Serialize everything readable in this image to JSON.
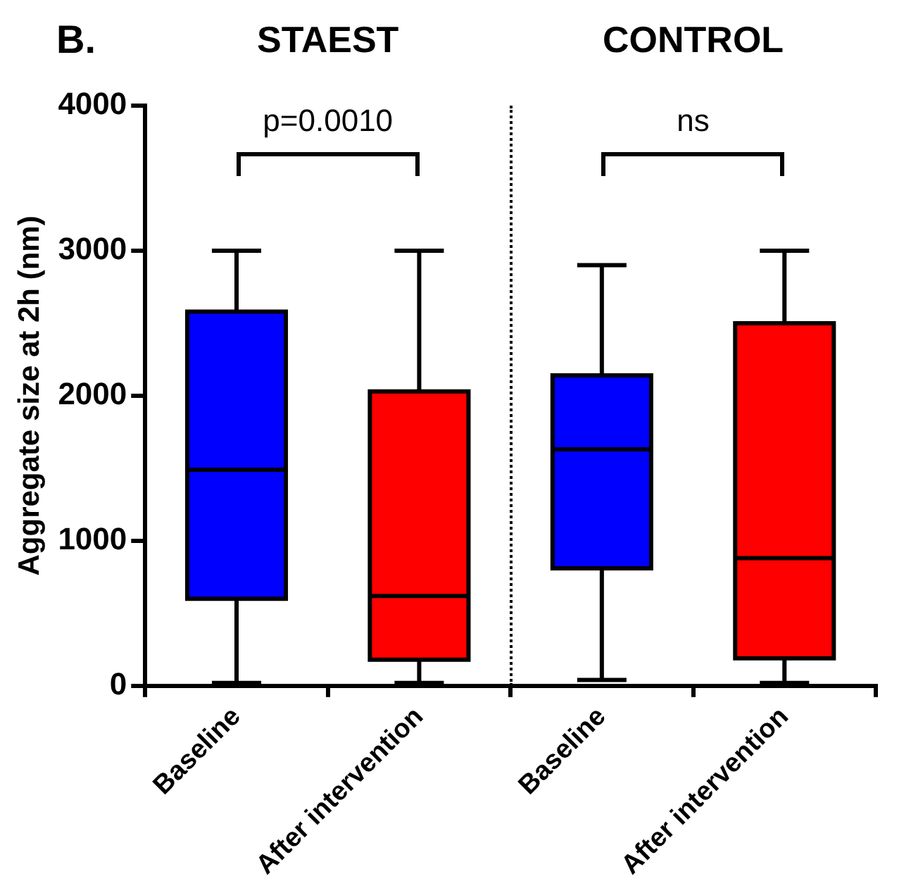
{
  "chart_data": {
    "type": "box",
    "title": "B.",
    "ylabel": "Aggregate size at 2h (nm)",
    "categories": [
      "Baseline",
      "After intervention",
      "Baseline",
      "After intervention"
    ],
    "colors": [
      "#0000ff",
      "#ff0000",
      "#0000ff",
      "#ff0000"
    ],
    "boxes": [
      {
        "low": 20,
        "q1": 600,
        "median": 1490,
        "q3": 2580,
        "high": 3000
      },
      {
        "low": 20,
        "q1": 180,
        "median": 620,
        "q3": 2030,
        "high": 3000
      },
      {
        "low": 40,
        "q1": 810,
        "median": 1630,
        "q3": 2140,
        "high": 2900
      },
      {
        "low": 20,
        "q1": 190,
        "median": 880,
        "q3": 2500,
        "high": 3000
      }
    ],
    "ylim": [
      0,
      4000
    ],
    "yticks": [
      0,
      1000,
      2000,
      3000,
      4000
    ],
    "grid": false,
    "legend": false,
    "annotations": [
      "STAEST",
      "CONTROL",
      "p=0.0010",
      "ns"
    ]
  }
}
